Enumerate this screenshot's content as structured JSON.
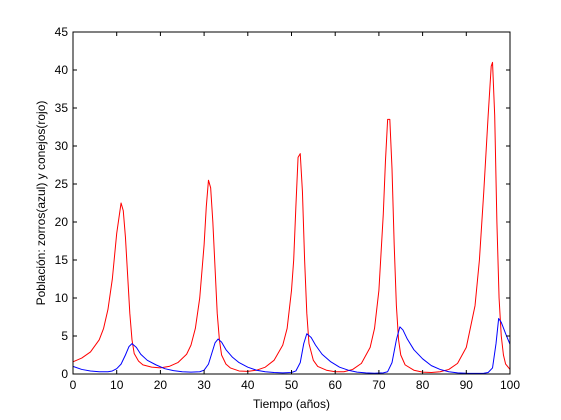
{
  "chart_data": {
    "type": "line",
    "title": "",
    "xlabel": "Tiempo (años)",
    "ylabel": "Población: zorros(azul) y conejos(rojo)",
    "xlim": [
      0,
      100
    ],
    "ylim": [
      0,
      45
    ],
    "xticks": [
      0,
      10,
      20,
      30,
      40,
      50,
      60,
      70,
      80,
      90,
      100
    ],
    "yticks": [
      0,
      5,
      10,
      15,
      20,
      25,
      30,
      35,
      40,
      45
    ],
    "xtick_labels": [
      "0",
      "10",
      "20",
      "30",
      "40",
      "50",
      "60",
      "70",
      "80",
      "90",
      "100"
    ],
    "ytick_labels": [
      "0",
      "5",
      "10",
      "15",
      "20",
      "25",
      "30",
      "35",
      "40",
      "45"
    ],
    "grid": false,
    "legend": "none",
    "series": [
      {
        "color": "#ff0000",
        "points": [
          [
            0,
            1.6
          ],
          [
            2,
            2.1
          ],
          [
            4,
            2.9
          ],
          [
            6,
            4.5
          ],
          [
            7,
            6.0
          ],
          [
            8,
            8.5
          ],
          [
            9,
            12.5
          ],
          [
            10,
            18.5
          ],
          [
            11,
            22.5
          ],
          [
            11.5,
            21.5
          ],
          [
            12,
            18.0
          ],
          [
            12.5,
            13.0
          ],
          [
            13,
            8.0
          ],
          [
            13.5,
            4.5
          ],
          [
            14,
            2.7
          ],
          [
            15,
            1.7
          ],
          [
            16,
            1.2
          ],
          [
            18,
            0.9
          ],
          [
            20,
            0.8
          ],
          [
            22,
            1.0
          ],
          [
            24,
            1.5
          ],
          [
            26,
            2.6
          ],
          [
            27,
            3.8
          ],
          [
            28,
            6.0
          ],
          [
            29,
            10.0
          ],
          [
            30,
            17.0
          ],
          [
            30.5,
            22.0
          ],
          [
            31,
            25.5
          ],
          [
            31.5,
            24.5
          ],
          [
            32,
            20.0
          ],
          [
            32.5,
            14.0
          ],
          [
            33,
            8.0
          ],
          [
            33.5,
            4.5
          ],
          [
            34,
            2.5
          ],
          [
            35,
            1.3
          ],
          [
            36,
            0.8
          ],
          [
            38,
            0.4
          ],
          [
            40,
            0.35
          ],
          [
            42,
            0.5
          ],
          [
            44,
            0.9
          ],
          [
            46,
            1.8
          ],
          [
            48,
            3.8
          ],
          [
            49,
            6.0
          ],
          [
            50,
            11.0
          ],
          [
            50.5,
            15.0
          ],
          [
            51,
            22.0
          ],
          [
            51.5,
            28.5
          ],
          [
            52,
            29.0
          ],
          [
            52.5,
            24.0
          ],
          [
            53,
            15.0
          ],
          [
            53.5,
            8.0
          ],
          [
            54,
            4.0
          ],
          [
            55,
            1.8
          ],
          [
            56,
            1.0
          ],
          [
            58,
            0.5
          ],
          [
            60,
            0.3
          ],
          [
            62,
            0.3
          ],
          [
            64,
            0.6
          ],
          [
            66,
            1.4
          ],
          [
            68,
            3.5
          ],
          [
            69,
            6.0
          ],
          [
            70,
            11.0
          ],
          [
            71,
            21.0
          ],
          [
            71.5,
            28.0
          ],
          [
            72,
            33.5
          ],
          [
            72.5,
            33.5
          ],
          [
            73,
            27.0
          ],
          [
            73.5,
            17.0
          ],
          [
            74,
            9.0
          ],
          [
            74.5,
            4.5
          ],
          [
            75,
            2.5
          ],
          [
            76,
            1.2
          ],
          [
            78,
            0.5
          ],
          [
            80,
            0.25
          ],
          [
            82,
            0.2
          ],
          [
            84,
            0.3
          ],
          [
            86,
            0.6
          ],
          [
            88,
            1.4
          ],
          [
            90,
            3.5
          ],
          [
            92,
            9.0
          ],
          [
            93,
            15.0
          ],
          [
            94,
            24.0
          ],
          [
            95,
            34.0
          ],
          [
            95.7,
            40.5
          ],
          [
            96,
            41.0
          ],
          [
            96.5,
            34.0
          ],
          [
            97,
            20.0
          ],
          [
            97.5,
            10.0
          ],
          [
            98,
            5.0
          ],
          [
            98.5,
            2.5
          ],
          [
            99,
            1.3
          ],
          [
            100,
            0.6
          ]
        ]
      },
      {
        "color": "#0000ff",
        "points": [
          [
            0,
            1.0
          ],
          [
            2,
            0.6
          ],
          [
            4,
            0.4
          ],
          [
            6,
            0.3
          ],
          [
            8,
            0.3
          ],
          [
            9,
            0.4
          ],
          [
            10,
            0.7
          ],
          [
            11,
            1.3
          ],
          [
            12,
            2.5
          ],
          [
            12.8,
            3.6
          ],
          [
            13.5,
            4.0
          ],
          [
            14.5,
            3.5
          ],
          [
            15.5,
            2.6
          ],
          [
            17,
            1.8
          ],
          [
            19,
            1.2
          ],
          [
            21,
            0.7
          ],
          [
            23,
            0.45
          ],
          [
            25,
            0.3
          ],
          [
            27,
            0.25
          ],
          [
            29,
            0.3
          ],
          [
            30,
            0.5
          ],
          [
            31,
            1.3
          ],
          [
            31.8,
            2.8
          ],
          [
            32.5,
            4.1
          ],
          [
            33.2,
            4.6
          ],
          [
            34,
            4.2
          ],
          [
            35,
            3.2
          ],
          [
            36.5,
            2.2
          ],
          [
            38,
            1.5
          ],
          [
            40,
            0.9
          ],
          [
            42,
            0.5
          ],
          [
            44,
            0.3
          ],
          [
            46,
            0.2
          ],
          [
            48,
            0.15
          ],
          [
            50,
            0.2
          ],
          [
            51,
            0.4
          ],
          [
            52,
            1.5
          ],
          [
            52.8,
            4.0
          ],
          [
            53.5,
            5.3
          ],
          [
            54.5,
            4.8
          ],
          [
            55.5,
            3.8
          ],
          [
            57,
            2.6
          ],
          [
            59,
            1.6
          ],
          [
            61,
            0.9
          ],
          [
            63,
            0.5
          ],
          [
            65,
            0.25
          ],
          [
            67,
            0.15
          ],
          [
            69,
            0.1
          ],
          [
            71,
            0.15
          ],
          [
            72,
            0.3
          ],
          [
            73,
            1.5
          ],
          [
            74,
            4.5
          ],
          [
            74.8,
            6.2
          ],
          [
            75.5,
            5.8
          ],
          [
            76.5,
            4.6
          ],
          [
            78,
            3.2
          ],
          [
            80,
            2.0
          ],
          [
            82,
            1.1
          ],
          [
            84,
            0.6
          ],
          [
            86,
            0.3
          ],
          [
            88,
            0.15
          ],
          [
            90,
            0.1
          ],
          [
            92,
            0.08
          ],
          [
            94,
            0.1
          ],
          [
            95,
            0.2
          ],
          [
            96,
            0.8
          ],
          [
            96.8,
            4.0
          ],
          [
            97.4,
            7.3
          ],
          [
            98,
            6.8
          ],
          [
            99,
            5.3
          ],
          [
            100,
            3.9
          ]
        ]
      }
    ]
  }
}
